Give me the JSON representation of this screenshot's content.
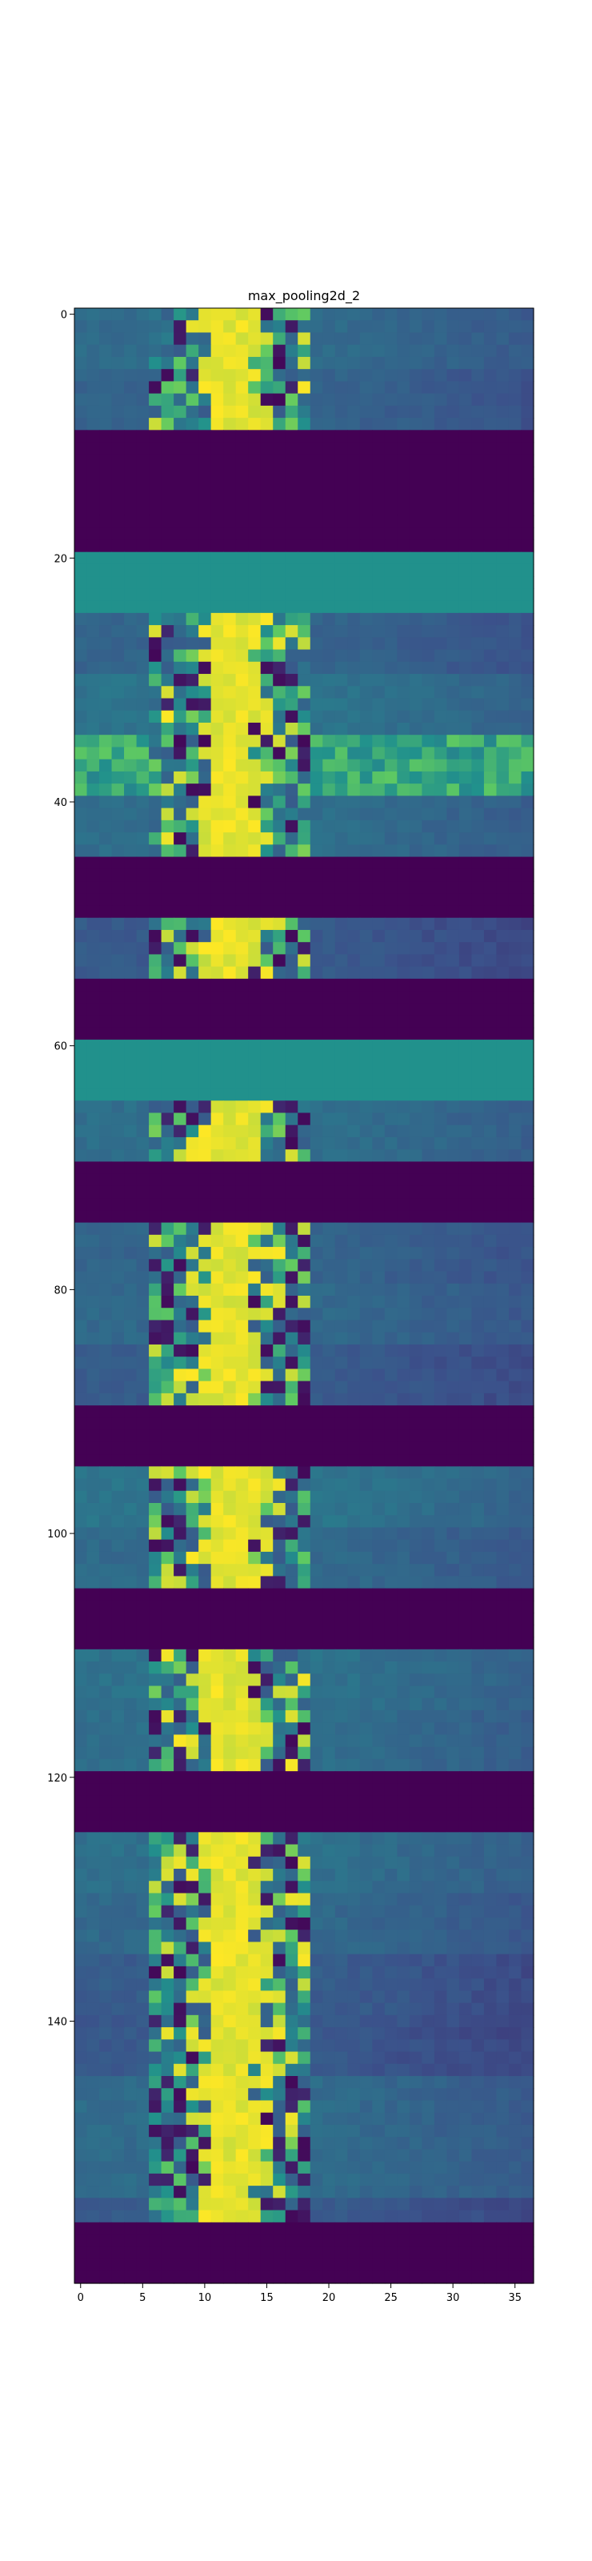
{
  "chart_data": {
    "type": "heatmap",
    "title": "max_pooling2d_2",
    "xlabel": "",
    "ylabel": "",
    "colormap": "viridis",
    "colormap_stops": [
      "#440154",
      "#3b528b",
      "#21918c",
      "#5ec962",
      "#fde725"
    ],
    "grid": false,
    "xlim": [
      -0.5,
      36.5
    ],
    "ylim": [
      161.5,
      -0.5
    ],
    "x_ticks": [
      0,
      5,
      10,
      15,
      20,
      25,
      30,
      35
    ],
    "y_ticks": [
      0,
      20,
      40,
      60,
      80,
      100,
      120,
      140
    ],
    "x_tick_labels": [
      "0",
      "5",
      "10",
      "15",
      "20",
      "25",
      "30",
      "35"
    ],
    "y_tick_labels": [
      "0",
      "20",
      "40",
      "60",
      "80",
      "100",
      "120",
      "140"
    ],
    "n_rows": 162,
    "n_cols": 37,
    "value_range": [
      0,
      1
    ],
    "zero_row_bands": [
      [
        10,
        19
      ],
      [
        45,
        49
      ],
      [
        55,
        59
      ],
      [
        70,
        74
      ],
      [
        90,
        94
      ],
      [
        105,
        109
      ],
      [
        120,
        124
      ],
      [
        157,
        161
      ]
    ],
    "flat_row_bands": [
      {
        "rows": [
          20,
          24
        ],
        "value": 0.5
      },
      {
        "rows": [
          60,
          64
        ],
        "value": 0.5
      }
    ],
    "active_column_range": [
      6,
      18
    ],
    "peak_value": 1.0,
    "background_value": 0.33
  }
}
